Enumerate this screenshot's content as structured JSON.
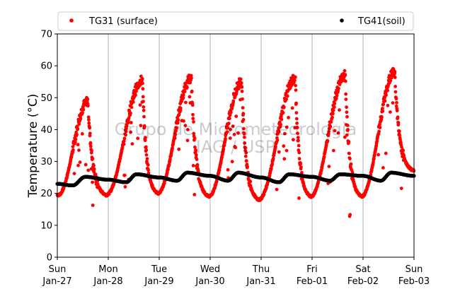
{
  "chart_data": {
    "type": "scatter",
    "ylabel": "Temperature (°C)",
    "xlabel": "",
    "ylim": [
      0,
      70
    ],
    "yticks": [
      0,
      10,
      20,
      30,
      40,
      50,
      60,
      70
    ],
    "xlim_days": [
      0,
      7
    ],
    "xticks": [
      {
        "day": "Sun",
        "date": "Jan-27"
      },
      {
        "day": "Mon",
        "date": "Jan-28"
      },
      {
        "day": "Tue",
        "date": "Jan-29"
      },
      {
        "day": "Wed",
        "date": "Jan-30"
      },
      {
        "day": "Thu",
        "date": "Jan-31"
      },
      {
        "day": "Fri",
        "date": "Feb-01"
      },
      {
        "day": "Sat",
        "date": "Feb-02"
      },
      {
        "day": "Sun",
        "date": "Feb-03"
      }
    ],
    "grid": "vertical",
    "legend_position": "top",
    "series": [
      {
        "name": "TG31 (surface)",
        "color": "#ff0000",
        "daily_cycle": [
          {
            "min": 19.5,
            "min_time": 0.02,
            "max": 49,
            "max_time": 0.6
          },
          {
            "min": 19.5,
            "min_time": 0.96,
            "max": 55.5,
            "max_time": 1.67
          },
          {
            "min": 20.0,
            "min_time": 1.97,
            "max": 56,
            "max_time": 2.63
          },
          {
            "min": 19.0,
            "min_time": 2.97,
            "max": 55,
            "max_time": 3.62
          },
          {
            "min": 18.0,
            "min_time": 3.95,
            "max": 56,
            "max_time": 4.67
          },
          {
            "min": 19.0,
            "min_time": 4.97,
            "max": 57,
            "max_time": 5.65
          },
          {
            "min": 19.0,
            "min_time": 5.97,
            "max": 58,
            "max_time": 6.62
          },
          {
            "min": 27.0,
            "min_time": 7.0
          }
        ]
      },
      {
        "name": "TG41(soil)",
        "color": "#000000",
        "values_by_day": [
          {
            "time": 0.0,
            "value": 23.0
          },
          {
            "time": 0.3,
            "value": 22.5
          },
          {
            "time": 0.55,
            "value": 25.2
          },
          {
            "time": 1.0,
            "value": 24.3
          },
          {
            "time": 1.35,
            "value": 23.5
          },
          {
            "time": 1.55,
            "value": 26.0
          },
          {
            "time": 2.0,
            "value": 25.0
          },
          {
            "time": 2.35,
            "value": 24.0
          },
          {
            "time": 2.55,
            "value": 26.5
          },
          {
            "time": 3.0,
            "value": 25.5
          },
          {
            "time": 3.35,
            "value": 24.0
          },
          {
            "time": 3.55,
            "value": 26.5
          },
          {
            "time": 4.0,
            "value": 25.0
          },
          {
            "time": 4.35,
            "value": 23.5
          },
          {
            "time": 4.55,
            "value": 26.0
          },
          {
            "time": 5.0,
            "value": 25.2
          },
          {
            "time": 5.35,
            "value": 24.0
          },
          {
            "time": 5.55,
            "value": 26.0
          },
          {
            "time": 6.0,
            "value": 25.5
          },
          {
            "time": 6.35,
            "value": 24.0
          },
          {
            "time": 6.55,
            "value": 26.5
          },
          {
            "time": 7.0,
            "value": 25.5
          }
        ]
      }
    ],
    "watermark": [
      "Grupo de Micrometeorologia",
      "IAG / USP"
    ]
  }
}
